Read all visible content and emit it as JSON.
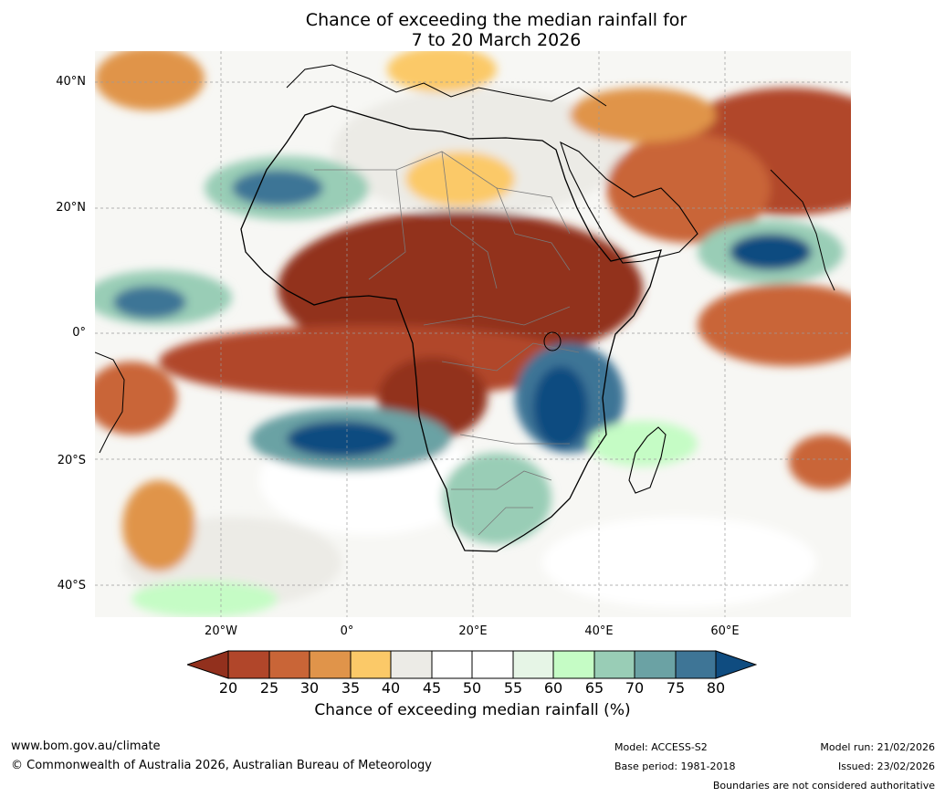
{
  "title": {
    "line1": "Chance of exceeding the median rainfall for",
    "line2": "7 to 20 March 2026"
  },
  "map": {
    "region": "Africa",
    "lat_labels": [
      "40°N",
      "20°N",
      "0°",
      "20°S",
      "40°S"
    ],
    "lon_labels": [
      "20°W",
      "0°",
      "20°E",
      "40°E",
      "60°E"
    ],
    "colors": {
      "c20": "#92301d",
      "c25": "#b1462a",
      "c30": "#c96537",
      "c35": "#e0944a",
      "c40": "#fbc968",
      "c45": "#ecebe6",
      "c50": "#ffffff",
      "c55": "#ffffff",
      "c60": "#e6f5e6",
      "c65": "#c5fcc5",
      "c70": "#99cdb6",
      "c75": "#6ba2a4",
      "c80": "#3e7596",
      "c85": "#0f4c80"
    }
  },
  "colorbar": {
    "ticks": [
      "20",
      "25",
      "30",
      "35",
      "40",
      "45",
      "50",
      "55",
      "60",
      "65",
      "70",
      "75",
      "80"
    ],
    "title": "Chance of exceeding median rainfall (%)"
  },
  "footer": {
    "website": "www.bom.gov.au/climate",
    "copyright": "© Commonwealth of Australia 2026, Australian Bureau of Meteorology",
    "model": "Model: ACCESS-S2",
    "base_period": "Base period: 1981-2018",
    "model_run": "Model run: 21/02/2026",
    "issued": "Issued: 23/02/2026",
    "boundaries_note": "Boundaries are not considered authoritative"
  }
}
